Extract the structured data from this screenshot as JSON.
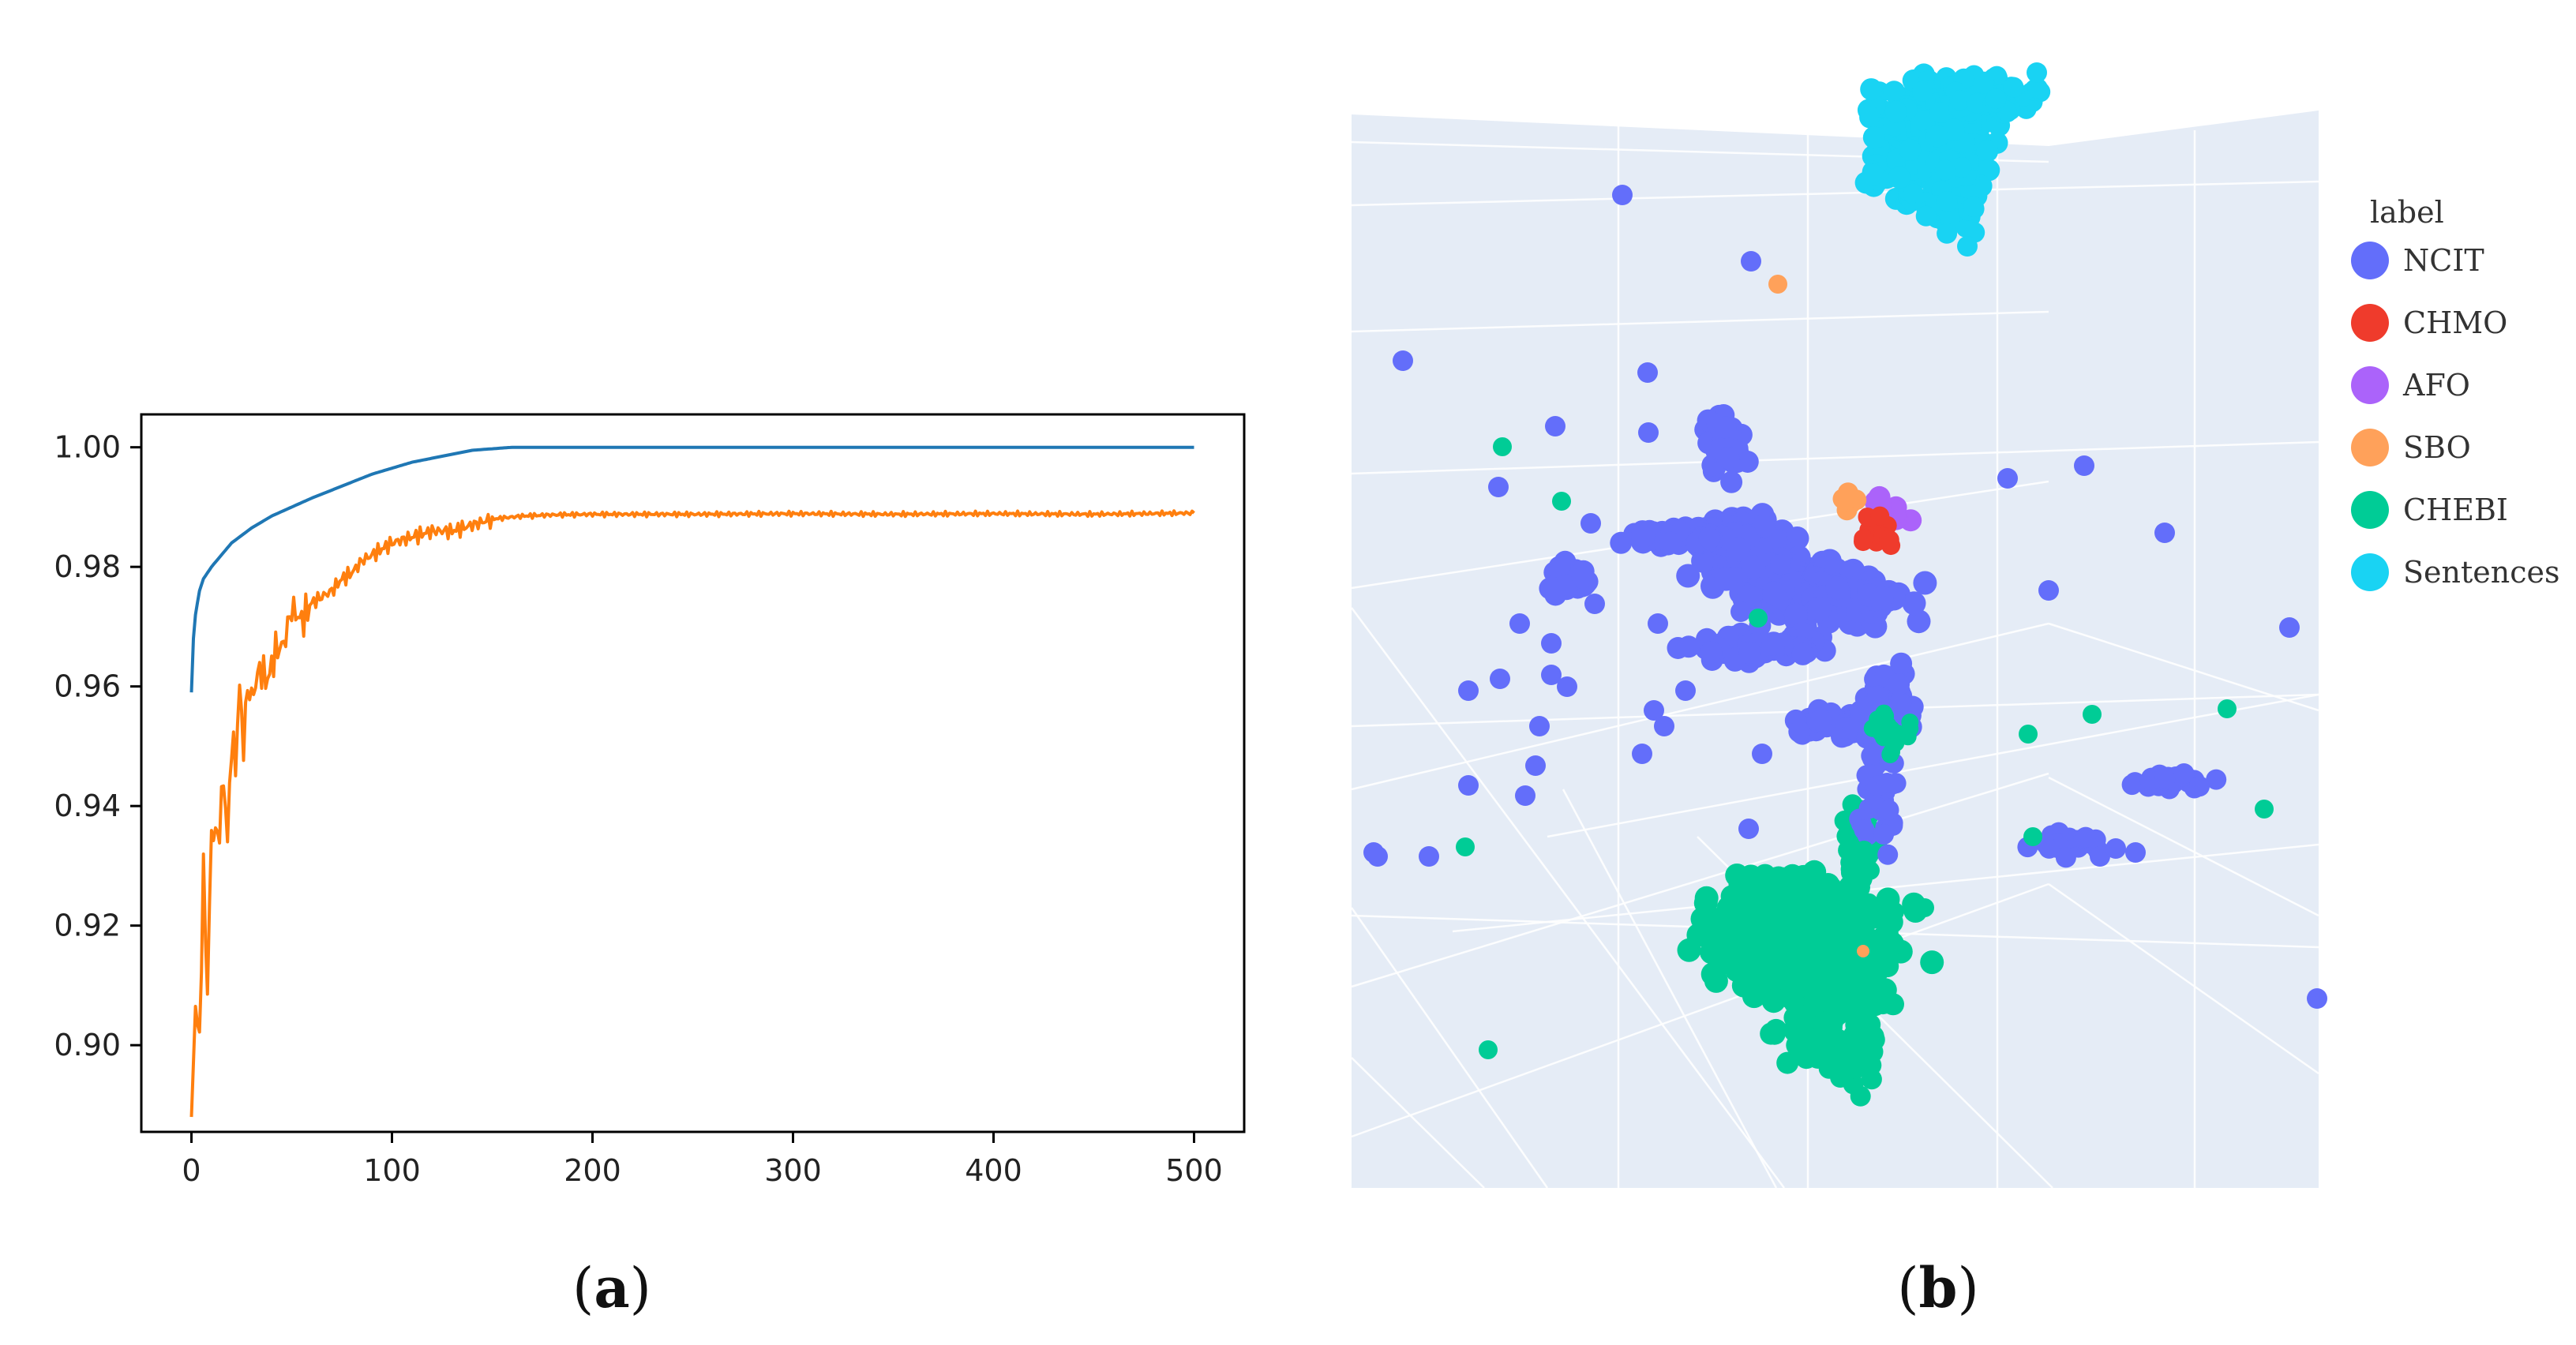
{
  "captions": {
    "a": "a",
    "b": "b"
  },
  "chart_data": [
    {
      "type": "line",
      "title": "",
      "xlabel": "",
      "ylabel": "",
      "xlim": [
        -25,
        525
      ],
      "ylim": [
        0.8855,
        1.0055
      ],
      "x_ticks": [
        0,
        100,
        200,
        300,
        400,
        500
      ],
      "y_ticks": [
        0.9,
        0.92,
        0.94,
        0.96,
        0.98,
        1.0
      ],
      "y_tick_labels": [
        "0.90",
        "0.92",
        "0.94",
        "0.96",
        "0.98",
        "1.00"
      ],
      "grid": false,
      "series": [
        {
          "color": "#1f77b4",
          "x": [
            0,
            1,
            2,
            4,
            6,
            10,
            15,
            20,
            30,
            40,
            50,
            60,
            75,
            90,
            100,
            110,
            125,
            140,
            160,
            200,
            300,
            400,
            500
          ],
          "y": [
            0.959,
            0.968,
            0.972,
            0.976,
            0.978,
            0.98,
            0.982,
            0.984,
            0.9865,
            0.9885,
            0.99,
            0.9915,
            0.9935,
            0.9955,
            0.9965,
            0.9975,
            0.9985,
            0.9995,
            1.0,
            1.0,
            1.0,
            1.0,
            1.0
          ]
        },
        {
          "color": "#ff7f0e",
          "x": [
            0,
            2,
            4,
            6,
            8,
            10,
            12,
            14,
            16,
            18,
            20,
            22,
            24,
            26,
            28,
            30,
            34,
            38,
            42,
            46,
            50,
            55,
            60,
            65,
            70,
            75,
            80,
            85,
            90,
            95,
            100,
            110,
            120,
            130,
            140,
            150,
            165,
            180,
            200,
            250,
            300,
            350,
            400,
            450,
            500
          ],
          "y": [
            0.888,
            0.906,
            0.901,
            0.929,
            0.909,
            0.936,
            0.935,
            0.936,
            0.945,
            0.934,
            0.951,
            0.947,
            0.96,
            0.95,
            0.96,
            0.958,
            0.963,
            0.961,
            0.966,
            0.967,
            0.973,
            0.971,
            0.974,
            0.975,
            0.976,
            0.978,
            0.979,
            0.981,
            0.982,
            0.983,
            0.984,
            0.985,
            0.986,
            0.986,
            0.987,
            0.988,
            0.9885,
            0.9887,
            0.9888,
            0.9888,
            0.9889,
            0.9888,
            0.9889,
            0.9888,
            0.989
          ]
        }
      ]
    },
    {
      "type": "scatter",
      "title": "",
      "legend": {
        "title": "label",
        "placement": "right",
        "entries": [
          {
            "name": "NCIT",
            "color": "#636efa"
          },
          {
            "name": "CHMO",
            "color": "#ef3b2c"
          },
          {
            "name": "AFO",
            "color": "#ab63fa"
          },
          {
            "name": "SBO",
            "color": "#ffa15a"
          },
          {
            "name": "CHEBI",
            "color": "#00cc96"
          },
          {
            "name": "Sentences",
            "color": "#19d3f3"
          }
        ]
      },
      "background": "#e5ecf6",
      "grid": true,
      "axes_visible": false
    }
  ]
}
